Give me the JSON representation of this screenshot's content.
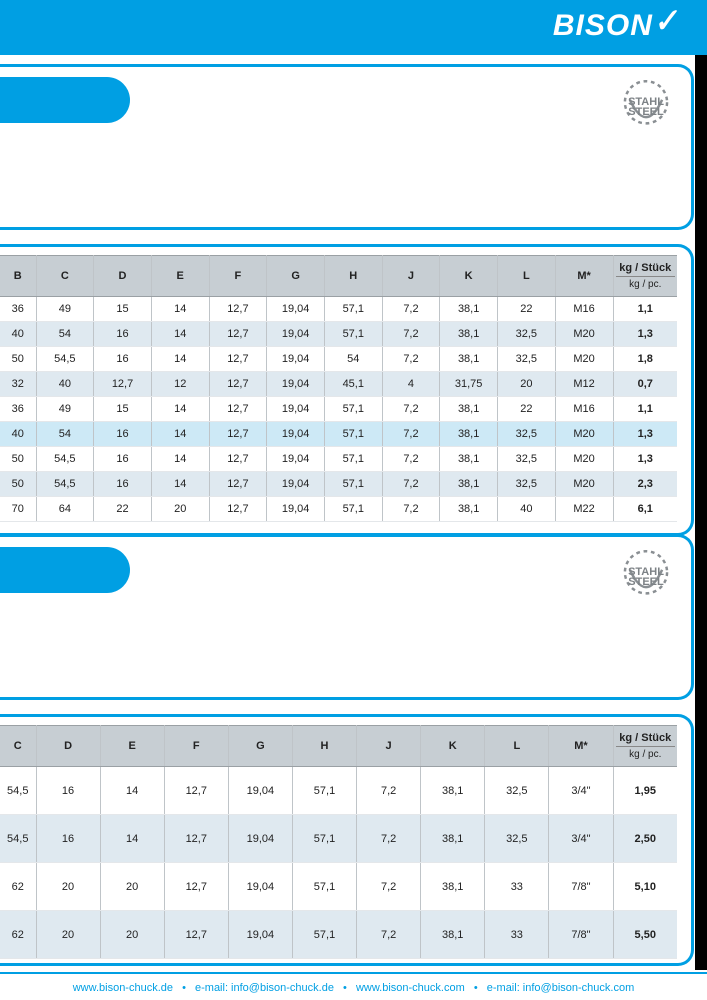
{
  "brand": "BISON",
  "badge": {
    "line1": "STAHL",
    "line2": "STEEL"
  },
  "table1": {
    "columns": [
      "B",
      "C",
      "D",
      "E",
      "F",
      "G",
      "H",
      "J",
      "K",
      "L",
      "M*"
    ],
    "kg_header": "kg / Stück",
    "kg_sub": "kg / pc.",
    "rows": [
      {
        "v": [
          "36",
          "49",
          "15",
          "14",
          "12,7",
          "19,04",
          "57,1",
          "7,2",
          "38,1",
          "22",
          "M16"
        ],
        "kg": "1,1"
      },
      {
        "v": [
          "40",
          "54",
          "16",
          "14",
          "12,7",
          "19,04",
          "57,1",
          "7,2",
          "38,1",
          "32,5",
          "M20"
        ],
        "kg": "1,3"
      },
      {
        "v": [
          "50",
          "54,5",
          "16",
          "14",
          "12,7",
          "19,04",
          "54",
          "7,2",
          "38,1",
          "32,5",
          "M20"
        ],
        "kg": "1,8"
      },
      {
        "v": [
          "32",
          "40",
          "12,7",
          "12",
          "12,7",
          "19,04",
          "45,1",
          "4",
          "31,75",
          "20",
          "M12"
        ],
        "kg": "0,7"
      },
      {
        "v": [
          "36",
          "49",
          "15",
          "14",
          "12,7",
          "19,04",
          "57,1",
          "7,2",
          "38,1",
          "22",
          "M16"
        ],
        "kg": "1,1"
      },
      {
        "v": [
          "40",
          "54",
          "16",
          "14",
          "12,7",
          "19,04",
          "57,1",
          "7,2",
          "38,1",
          "32,5",
          "M20"
        ],
        "kg": "1,3",
        "hi": true
      },
      {
        "v": [
          "50",
          "54,5",
          "16",
          "14",
          "12,7",
          "19,04",
          "57,1",
          "7,2",
          "38,1",
          "32,5",
          "M20"
        ],
        "kg": "1,3"
      },
      {
        "v": [
          "50",
          "54,5",
          "16",
          "14",
          "12,7",
          "19,04",
          "57,1",
          "7,2",
          "38,1",
          "32,5",
          "M20"
        ],
        "kg": "2,3"
      },
      {
        "v": [
          "70",
          "64",
          "22",
          "20",
          "12,7",
          "19,04",
          "57,1",
          "7,2",
          "38,1",
          "40",
          "M22"
        ],
        "kg": "6,1"
      }
    ]
  },
  "table2": {
    "columns": [
      "C",
      "D",
      "E",
      "F",
      "G",
      "H",
      "J",
      "K",
      "L",
      "M*"
    ],
    "kg_header": "kg / Stück",
    "kg_sub": "kg / pc.",
    "rows": [
      {
        "v": [
          "54,5",
          "16",
          "14",
          "12,7",
          "19,04",
          "57,1",
          "7,2",
          "38,1",
          "32,5",
          "3/4\""
        ],
        "kg": "1,95"
      },
      {
        "v": [
          "54,5",
          "16",
          "14",
          "12,7",
          "19,04",
          "57,1",
          "7,2",
          "38,1",
          "32,5",
          "3/4\""
        ],
        "kg": "2,50"
      },
      {
        "v": [
          "62",
          "20",
          "20",
          "12,7",
          "19,04",
          "57,1",
          "7,2",
          "38,1",
          "33",
          "7/8\""
        ],
        "kg": "5,10"
      },
      {
        "v": [
          "62",
          "20",
          "20",
          "12,7",
          "19,04",
          "57,1",
          "7,2",
          "38,1",
          "33",
          "7/8\""
        ],
        "kg": "5,50"
      }
    ]
  },
  "footer": {
    "items": [
      "www.bison-chuck.de",
      "e-mail: info@bison-chuck.de",
      "www.bison-chuck.com",
      "e-mail: info@bison-chuck.com"
    ]
  }
}
